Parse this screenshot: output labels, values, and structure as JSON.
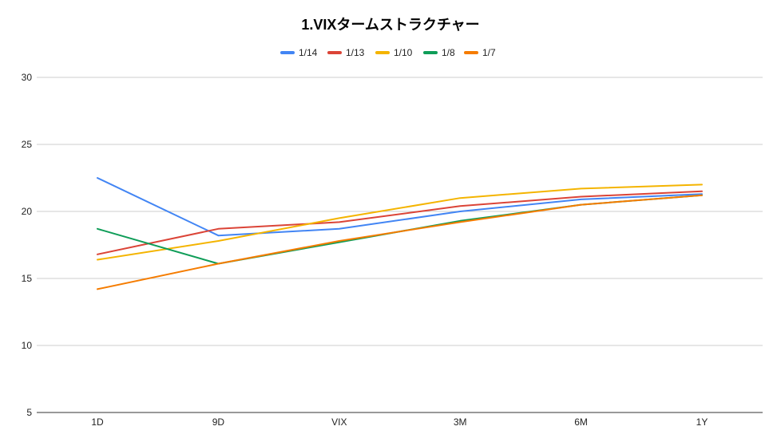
{
  "chart_data": {
    "type": "line",
    "title": "1.VIXタームストラクチャー",
    "xlabel": "",
    "ylabel": "",
    "categories": [
      "1D",
      "9D",
      "VIX",
      "3M",
      "6M",
      "1Y"
    ],
    "ylim": [
      5,
      30
    ],
    "yticks": [
      5,
      10,
      15,
      20,
      25,
      30
    ],
    "grid": true,
    "legend_position": "top",
    "series": [
      {
        "name": "1/14",
        "color": "#4285F4",
        "values": [
          22.5,
          18.2,
          18.7,
          20.0,
          20.9,
          21.3
        ]
      },
      {
        "name": "1/13",
        "color": "#DB4437",
        "values": [
          16.8,
          18.7,
          19.2,
          20.4,
          21.1,
          21.5
        ]
      },
      {
        "name": "1/10",
        "color": "#F4B400",
        "values": [
          16.4,
          17.8,
          19.5,
          21.0,
          21.7,
          22.0
        ]
      },
      {
        "name": "1/8",
        "color": "#0F9D58",
        "values": [
          18.7,
          16.1,
          17.7,
          19.3,
          20.5,
          21.2
        ]
      },
      {
        "name": "1/7",
        "color": "#F57C00",
        "values": [
          14.2,
          16.1,
          17.8,
          19.2,
          20.5,
          21.2
        ]
      }
    ]
  }
}
